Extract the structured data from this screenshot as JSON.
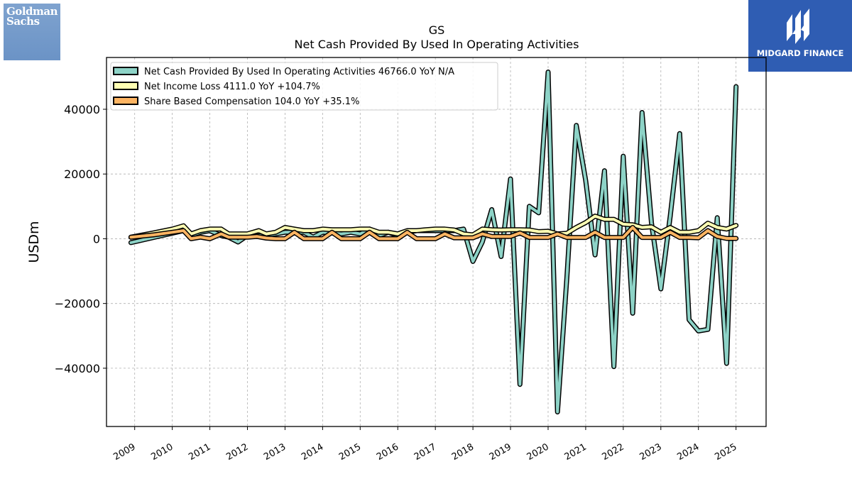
{
  "brand": {
    "left_logo_text": "Goldman Sachs",
    "right_logo_text": "MIDGARD FINANCE",
    "right_logo_color": "#2f5db3"
  },
  "chart_data": {
    "type": "line",
    "title": "GS",
    "subtitle": "Net Cash Provided By Used In Operating Activities",
    "ylabel": "USDm",
    "xlabel": "",
    "ylim": [
      -58000,
      56000
    ],
    "xlim": [
      2008.25,
      2025.8
    ],
    "yticks": [
      -40000,
      -20000,
      0,
      20000,
      40000
    ],
    "ytick_labels": [
      "−40000",
      "−20000",
      "0",
      "20000",
      "40000"
    ],
    "xticks": [
      2009,
      2010,
      2011,
      2012,
      2013,
      2014,
      2015,
      2016,
      2017,
      2018,
      2019,
      2020,
      2021,
      2022,
      2023,
      2024,
      2025
    ],
    "xtick_labels": [
      "2009",
      "2010",
      "2011",
      "2012",
      "2013",
      "2014",
      "2015",
      "2016",
      "2017",
      "2018",
      "2019",
      "2020",
      "2021",
      "2022",
      "2023",
      "2024",
      "2025"
    ],
    "grid": true,
    "legend_position": "top-left",
    "series": [
      {
        "name": "Net Cash Provided By Used In Operating Activities  46766.0 YoY N/A",
        "color": "#8dd3c7",
        "x": [
          2008.9,
          2010.3,
          2010.5,
          2010.75,
          2011.0,
          2011.3,
          2011.5,
          2011.75,
          2012.0,
          2012.5,
          2012.75,
          2013.0,
          2013.5,
          2013.75,
          2014.0,
          2014.5,
          2014.75,
          2015.0,
          2015.25,
          2015.5,
          2015.75,
          2016.0,
          2016.25,
          2016.5,
          2016.75,
          2017.0,
          2017.25,
          2017.5,
          2017.75,
          2018.0,
          2018.25,
          2018.5,
          2018.75,
          2019.0,
          2019.25,
          2019.5,
          2019.75,
          2020.0,
          2020.25,
          2020.5,
          2020.75,
          2021.0,
          2021.25,
          2021.5,
          2021.75,
          2022.0,
          2022.25,
          2022.5,
          2022.75,
          2023.0,
          2023.25,
          2023.5,
          2023.75,
          2024.0,
          2024.25,
          2024.5,
          2024.75,
          2025.0
        ],
        "y": [
          -1200,
          2500,
          1000,
          2000,
          2500,
          1000,
          500,
          -1000,
          1000,
          1000,
          1500,
          2000,
          2000,
          500,
          2000,
          1500,
          2000,
          1500,
          3000,
          1000,
          2000,
          1000,
          2000,
          2500,
          2500,
          2500,
          2500,
          2500,
          3000,
          -7000,
          -1000,
          9000,
          -5500,
          18500,
          -45000,
          10000,
          8000,
          51500,
          -53500,
          -12000,
          35000,
          18000,
          -5000,
          21000,
          -39500,
          25500,
          -23000,
          39000,
          5000,
          -15500,
          7000,
          32500,
          -25000,
          -28500,
          -28000,
          6500,
          -38500,
          47000
        ]
      },
      {
        "name": "Net Income Loss  4111.0 YoY +104.7%",
        "color": "#ffffb3",
        "x": [
          2008.9,
          2009.5,
          2010.0,
          2010.3,
          2010.5,
          2010.75,
          2011.0,
          2011.3,
          2011.5,
          2011.75,
          2012.0,
          2012.3,
          2012.5,
          2012.75,
          2013.0,
          2013.25,
          2013.5,
          2013.75,
          2014.0,
          2014.25,
          2014.5,
          2014.75,
          2015.0,
          2015.25,
          2015.5,
          2015.75,
          2016.0,
          2016.25,
          2016.5,
          2016.75,
          2017.0,
          2017.25,
          2017.5,
          2017.75,
          2018.0,
          2018.25,
          2018.5,
          2018.75,
          2019.0,
          2019.25,
          2019.5,
          2019.75,
          2020.0,
          2020.25,
          2020.5,
          2020.75,
          2021.0,
          2021.25,
          2021.5,
          2021.75,
          2022.0,
          2022.25,
          2022.5,
          2022.75,
          2023.0,
          2023.25,
          2023.5,
          2023.75,
          2024.0,
          2024.25,
          2024.5,
          2024.75,
          2025.0
        ],
        "y": [
          500,
          1800,
          3000,
          4000,
          1500,
          2500,
          3000,
          3000,
          1500,
          1500,
          1500,
          2500,
          1500,
          2000,
          3500,
          3000,
          2500,
          2500,
          3000,
          2800,
          2800,
          2800,
          3000,
          3000,
          2000,
          2000,
          1500,
          2500,
          2500,
          2800,
          3000,
          3000,
          2700,
          1500,
          1200,
          3000,
          2800,
          2700,
          2800,
          2800,
          2700,
          2200,
          2300,
          1500,
          1700,
          3500,
          5000,
          7000,
          6000,
          6000,
          4500,
          4300,
          3500,
          3700,
          2000,
          3500,
          2000,
          2000,
          2500,
          4800,
          3500,
          3000,
          4100
        ]
      },
      {
        "name": "Share Based Compensation  104.0 YoY +35.1%",
        "color": "#fdb462",
        "x": [
          2008.9,
          2009.5,
          2010.0,
          2010.3,
          2010.5,
          2010.75,
          2011.0,
          2011.3,
          2011.5,
          2011.75,
          2012.0,
          2012.25,
          2012.5,
          2012.75,
          2013.0,
          2013.25,
          2013.5,
          2013.75,
          2014.0,
          2014.25,
          2014.5,
          2014.75,
          2015.0,
          2015.25,
          2015.5,
          2015.75,
          2016.0,
          2016.25,
          2016.5,
          2016.75,
          2017.0,
          2017.25,
          2017.5,
          2017.75,
          2018.0,
          2018.25,
          2018.5,
          2018.75,
          2019.0,
          2019.25,
          2019.5,
          2019.75,
          2020.0,
          2020.25,
          2020.5,
          2020.75,
          2021.0,
          2021.25,
          2021.5,
          2021.75,
          2022.0,
          2022.25,
          2022.5,
          2022.75,
          2023.0,
          2023.25,
          2023.5,
          2023.75,
          2024.0,
          2024.25,
          2024.5,
          2024.75,
          2025.0
        ],
        "y": [
          500,
          1200,
          2000,
          2500,
          0,
          500,
          0,
          1500,
          500,
          500,
          500,
          700,
          200,
          0,
          0,
          2000,
          0,
          0,
          0,
          2000,
          0,
          0,
          0,
          2000,
          0,
          0,
          0,
          2000,
          0,
          0,
          0,
          1500,
          300,
          300,
          300,
          1500,
          700,
          700,
          700,
          1800,
          400,
          400,
          400,
          1500,
          400,
          400,
          400,
          2000,
          400,
          400,
          400,
          3500,
          400,
          400,
          400,
          2000,
          400,
          400,
          300,
          2500,
          700,
          100,
          104
        ]
      }
    ]
  }
}
